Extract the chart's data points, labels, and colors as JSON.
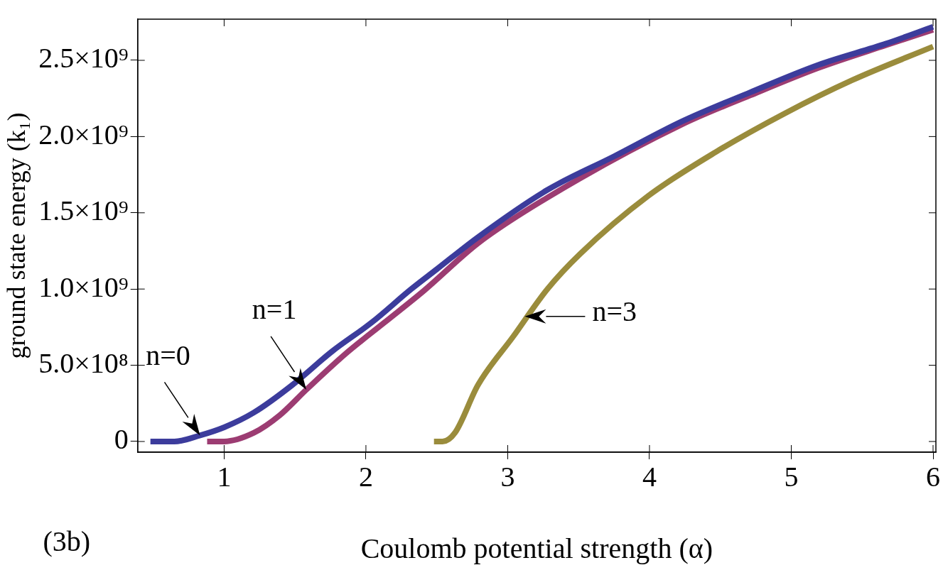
{
  "chart_data": {
    "type": "line",
    "xlabel": "Coulomb potential strength (α)",
    "ylabel": "ground state energy (k₁)",
    "xlim": [
      0.39,
      6.02
    ],
    "xticks": [
      1,
      2,
      3,
      4,
      5,
      6
    ],
    "ylim": [
      -70000000,
      2770000000
    ],
    "yticks": [
      {
        "value": 0,
        "label": "0"
      },
      {
        "value": 500000000,
        "label": "5.0×10⁸"
      },
      {
        "value": 1000000000,
        "label": "1.0×10⁹"
      },
      {
        "value": 1500000000,
        "label": "1.5×10⁹"
      },
      {
        "value": 2000000000,
        "label": "2.0×10⁹"
      },
      {
        "value": 2500000000,
        "label": "2.5×10⁹"
      }
    ],
    "grid": false,
    "legend": false,
    "marker": "none",
    "line_style": "solid",
    "series": [
      {
        "color": "#3c3c9c",
        "x": [
          0.48,
          0.65,
          0.83,
          1.0,
          1.21,
          1.48,
          1.76,
          2.04,
          2.32,
          2.5,
          2.79,
          3.28,
          3.75,
          4.23,
          4.71,
          5.19,
          5.67,
          6.0
        ],
        "values": [
          0,
          0,
          40000000,
          93000000,
          190000000,
          370000000,
          590000000,
          780000000,
          1000000000,
          1130000000,
          1340000000,
          1650000000,
          1870000000,
          2100000000,
          2290000000,
          2470000000,
          2610000000,
          2720000000
        ]
      },
      {
        "color": "#9c3c72",
        "x": [
          0.88,
          1.0,
          1.21,
          1.39,
          1.58,
          1.85,
          2.13,
          2.41,
          2.79,
          3.28,
          4.23,
          4.71,
          5.19,
          5.67,
          6.0
        ],
        "values": [
          0,
          0,
          57000000,
          170000000,
          340000000,
          570000000,
          780000000,
          990000000,
          1300000000,
          1600000000,
          2080000000,
          2270000000,
          2450000000,
          2600000000,
          2700000000
        ]
      },
      {
        "color": "#9a8c3c",
        "x": [
          2.48,
          2.54,
          2.63,
          2.79,
          3.04,
          3.28,
          3.51,
          3.99,
          4.47,
          4.95,
          5.43,
          6.0
        ],
        "values": [
          0,
          0,
          60000000,
          370000000,
          690000000,
          1000000000,
          1230000000,
          1610000000,
          1900000000,
          2150000000,
          2370000000,
          2590000000
        ]
      }
    ],
    "annotations": [
      {
        "text": "n=0",
        "x": 0.83,
        "y": 40000000
      },
      {
        "text": "n=1",
        "x": 1.58,
        "y": 340000000
      },
      {
        "text": "n=3",
        "x": 3.12,
        "y": 820000000
      },
      "(3b)"
    ]
  }
}
